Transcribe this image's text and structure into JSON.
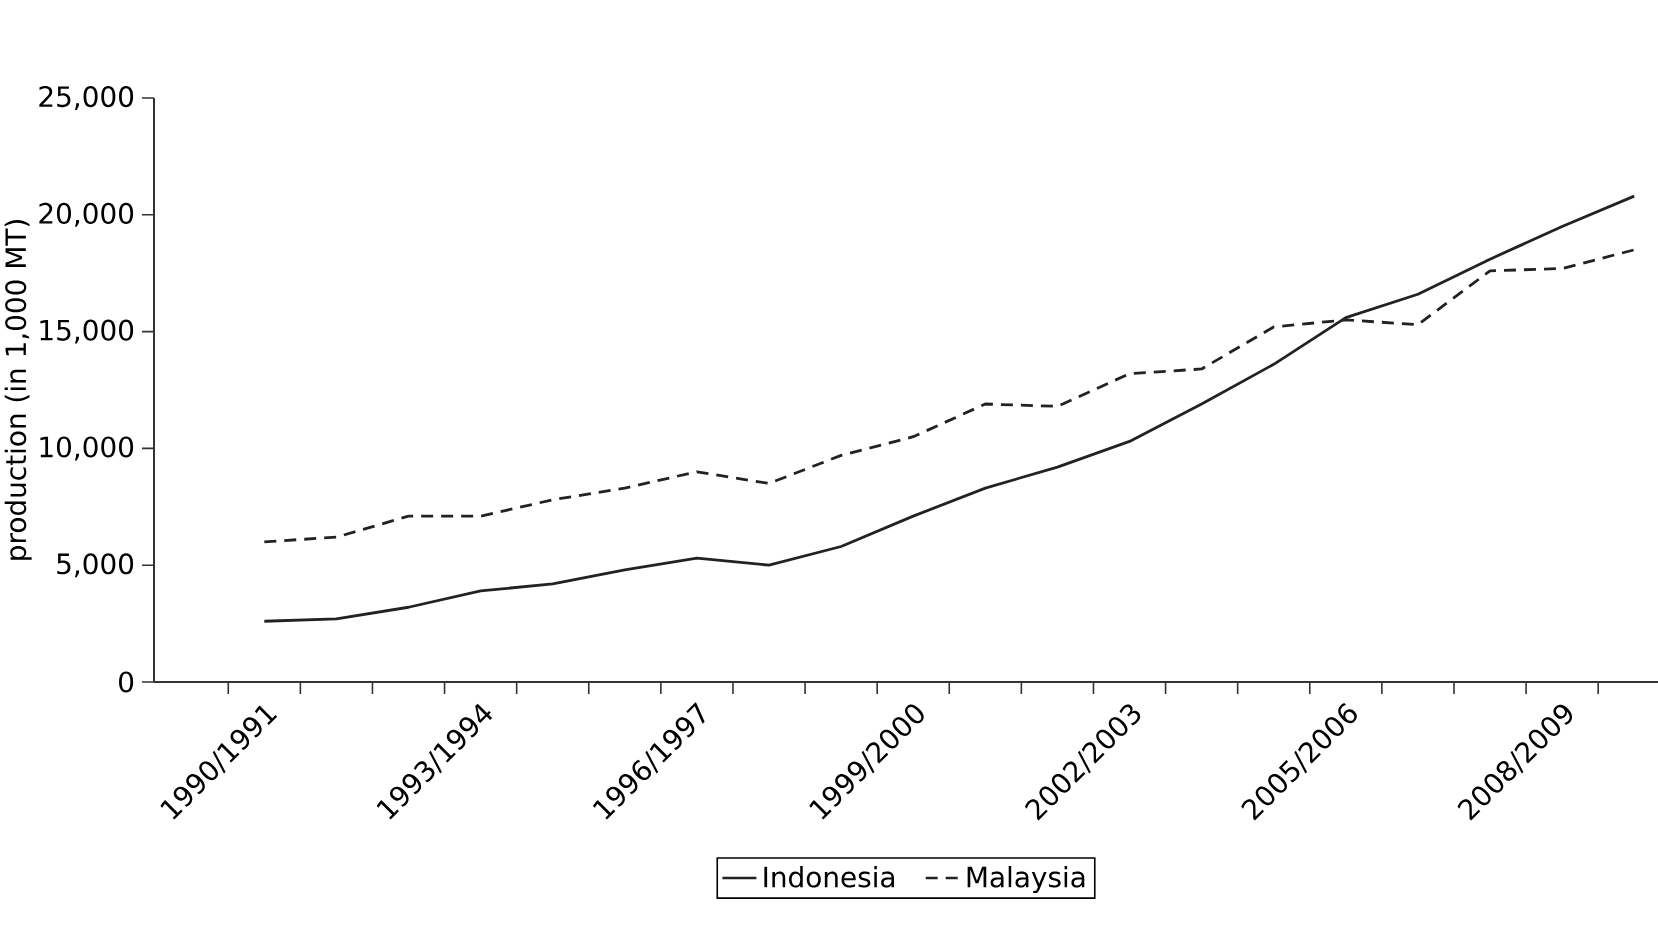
{
  "chart_data": {
    "type": "line",
    "ylabel": "production (in 1,000 MT)",
    "categories": [
      "1990/1991",
      null,
      null,
      "1993/1994",
      null,
      null,
      "1996/1997",
      null,
      null,
      "1999/2000",
      null,
      null,
      "2002/2003",
      null,
      null,
      "2005/2006",
      null,
      null,
      "2008/2009",
      null
    ],
    "series": [
      {
        "name": "Indonesia",
        "color": "#222222",
        "line_style": "solid",
        "values": [
          2600,
          2700,
          3200,
          3900,
          4200,
          4800,
          5300,
          5000,
          5800,
          7100,
          8300,
          9200,
          10300,
          11900,
          13600,
          15600,
          16600,
          18100,
          19500,
          20800
        ]
      },
      {
        "name": "Malaysia",
        "color": "#222222",
        "line_style": "dashed",
        "values": [
          6000,
          6200,
          7100,
          7100,
          7800,
          8300,
          9000,
          8500,
          9700,
          10500,
          11900,
          11800,
          13200,
          13400,
          15200,
          15500,
          15300,
          17600,
          17700,
          18500
        ]
      }
    ],
    "ylim": [
      0,
      25000
    ],
    "yticks": [
      {
        "value": 0,
        "label": "0"
      },
      {
        "value": 5000,
        "label": "5,000"
      },
      {
        "value": 10000,
        "label": "10,000"
      },
      {
        "value": 15000,
        "label": "15,000"
      },
      {
        "value": 20000,
        "label": "20,000"
      },
      {
        "value": 25000,
        "label": "25,000"
      }
    ],
    "grid": false,
    "legend": "bottom",
    "marker": "none"
  }
}
